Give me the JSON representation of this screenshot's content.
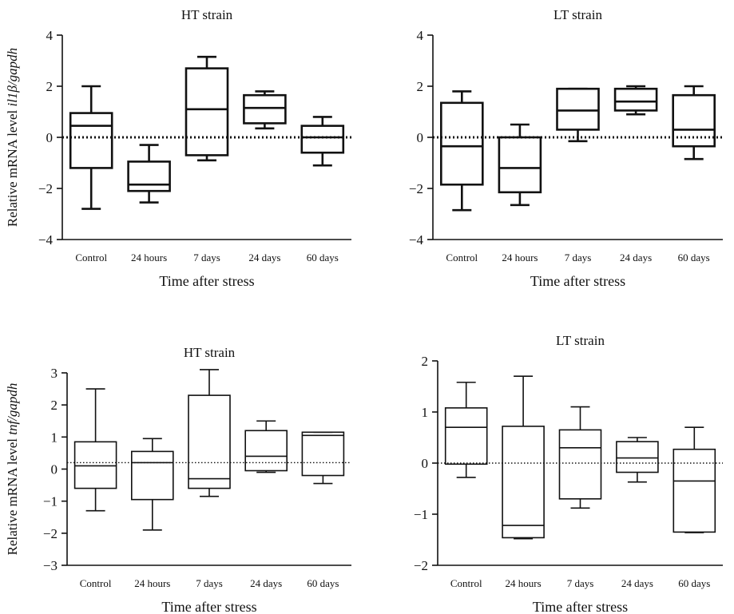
{
  "chart_data": [
    {
      "type": "box",
      "title": "HT strain",
      "xlabel": "Time after stress",
      "ylabel_prefix": "Relative mRNA level ",
      "ylabel_gene": "il1β/gapdh",
      "categories": [
        "Control",
        "24 hours",
        "7 days",
        "24 days",
        "60 days"
      ],
      "ylim": [
        -4,
        4
      ],
      "yticks": [
        "−4",
        "−2",
        "0",
        "2",
        "4"
      ],
      "ytick_values": [
        -4,
        -2,
        0,
        2,
        4
      ],
      "reference_line": 0,
      "reference_style": "dotted-thick",
      "boxes": [
        {
          "min": -2.8,
          "q1": -1.2,
          "median": 0.45,
          "q3": 0.95,
          "max": 2.0
        },
        {
          "min": -2.55,
          "q1": -2.1,
          "median": -1.85,
          "q3": -0.95,
          "max": -0.3
        },
        {
          "min": -0.9,
          "q1": -0.7,
          "median": 1.1,
          "q3": 2.7,
          "max": 3.15
        },
        {
          "min": 0.35,
          "q1": 0.55,
          "median": 1.15,
          "q3": 1.65,
          "max": 1.8
        },
        {
          "min": -1.1,
          "q1": -0.6,
          "median": 0.0,
          "q3": 0.45,
          "max": 0.8
        }
      ]
    },
    {
      "type": "box",
      "title": "LT strain",
      "xlabel": "Time after stress",
      "ylabel_prefix": "",
      "ylabel_gene": "",
      "categories": [
        "Control",
        "24 hours",
        "7 days",
        "24 days",
        "60 days"
      ],
      "ylim": [
        -4,
        4
      ],
      "yticks": [
        "−4",
        "−2",
        "0",
        "2",
        "4"
      ],
      "ytick_values": [
        -4,
        -2,
        0,
        2,
        4
      ],
      "reference_line": 0,
      "reference_style": "dotted-thick",
      "boxes": [
        {
          "min": -2.85,
          "q1": -1.85,
          "median": -0.35,
          "q3": 1.35,
          "max": 1.8
        },
        {
          "min": -2.65,
          "q1": -2.15,
          "median": -1.2,
          "q3": 0.0,
          "max": 0.5
        },
        {
          "min": -0.15,
          "q1": 0.3,
          "median": 1.05,
          "q3": 1.9,
          "max": 1.9
        },
        {
          "min": 0.9,
          "q1": 1.05,
          "median": 1.4,
          "q3": 1.9,
          "max": 2.0
        },
        {
          "min": -0.85,
          "q1": -0.35,
          "median": 0.3,
          "q3": 1.65,
          "max": 2.0
        }
      ]
    },
    {
      "type": "box",
      "title": "HT strain",
      "xlabel": "Time after stress",
      "ylabel_prefix": "Relative mRNA level ",
      "ylabel_gene": "tnf/gapdh",
      "categories": [
        "Control",
        "24 hours",
        "7 days",
        "24 days",
        "60 days"
      ],
      "ylim": [
        -3,
        3
      ],
      "yticks": [
        "−3",
        "−2",
        "−1",
        "0",
        "1",
        "2",
        "3"
      ],
      "ytick_values": [
        -3,
        -2,
        -1,
        0,
        1,
        2,
        3
      ],
      "reference_line": 0.2,
      "reference_style": "dotted-thin",
      "boxes": [
        {
          "min": -1.3,
          "q1": -0.6,
          "median": 0.1,
          "q3": 0.85,
          "max": 2.5
        },
        {
          "min": -1.9,
          "q1": -0.95,
          "median": 0.2,
          "q3": 0.55,
          "max": 0.95
        },
        {
          "min": -0.85,
          "q1": -0.6,
          "median": -0.3,
          "q3": 2.3,
          "max": 3.1
        },
        {
          "min": -0.1,
          "q1": -0.05,
          "median": 0.4,
          "q3": 1.2,
          "max": 1.5
        },
        {
          "min": -0.45,
          "q1": -0.2,
          "median": 1.05,
          "q3": 1.15,
          "max": 1.15
        }
      ]
    },
    {
      "type": "box",
      "title": "LT strain",
      "xlabel": "Time after stress",
      "ylabel_prefix": "",
      "ylabel_gene": "",
      "categories": [
        "Control",
        "24 hours",
        "7 days",
        "24 days",
        "60 days"
      ],
      "ylim": [
        -2,
        2
      ],
      "yticks": [
        "−2",
        "−1",
        "0",
        "1",
        "2"
      ],
      "ytick_values": [
        -2,
        -1,
        0,
        1,
        2
      ],
      "reference_line": 0,
      "reference_style": "dotted-thin",
      "boxes": [
        {
          "min": -0.28,
          "q1": -0.02,
          "median": 0.7,
          "q3": 1.08,
          "max": 1.58
        },
        {
          "min": -1.48,
          "q1": -1.46,
          "median": -1.22,
          "q3": 0.72,
          "max": 1.7
        },
        {
          "min": -0.88,
          "q1": -0.7,
          "median": 0.3,
          "q3": 0.65,
          "max": 1.1
        },
        {
          "min": -0.37,
          "q1": -0.18,
          "median": 0.1,
          "q3": 0.42,
          "max": 0.5
        },
        {
          "min": -1.36,
          "q1": -1.35,
          "median": -0.35,
          "q3": 0.27,
          "max": 0.7
        }
      ]
    }
  ]
}
